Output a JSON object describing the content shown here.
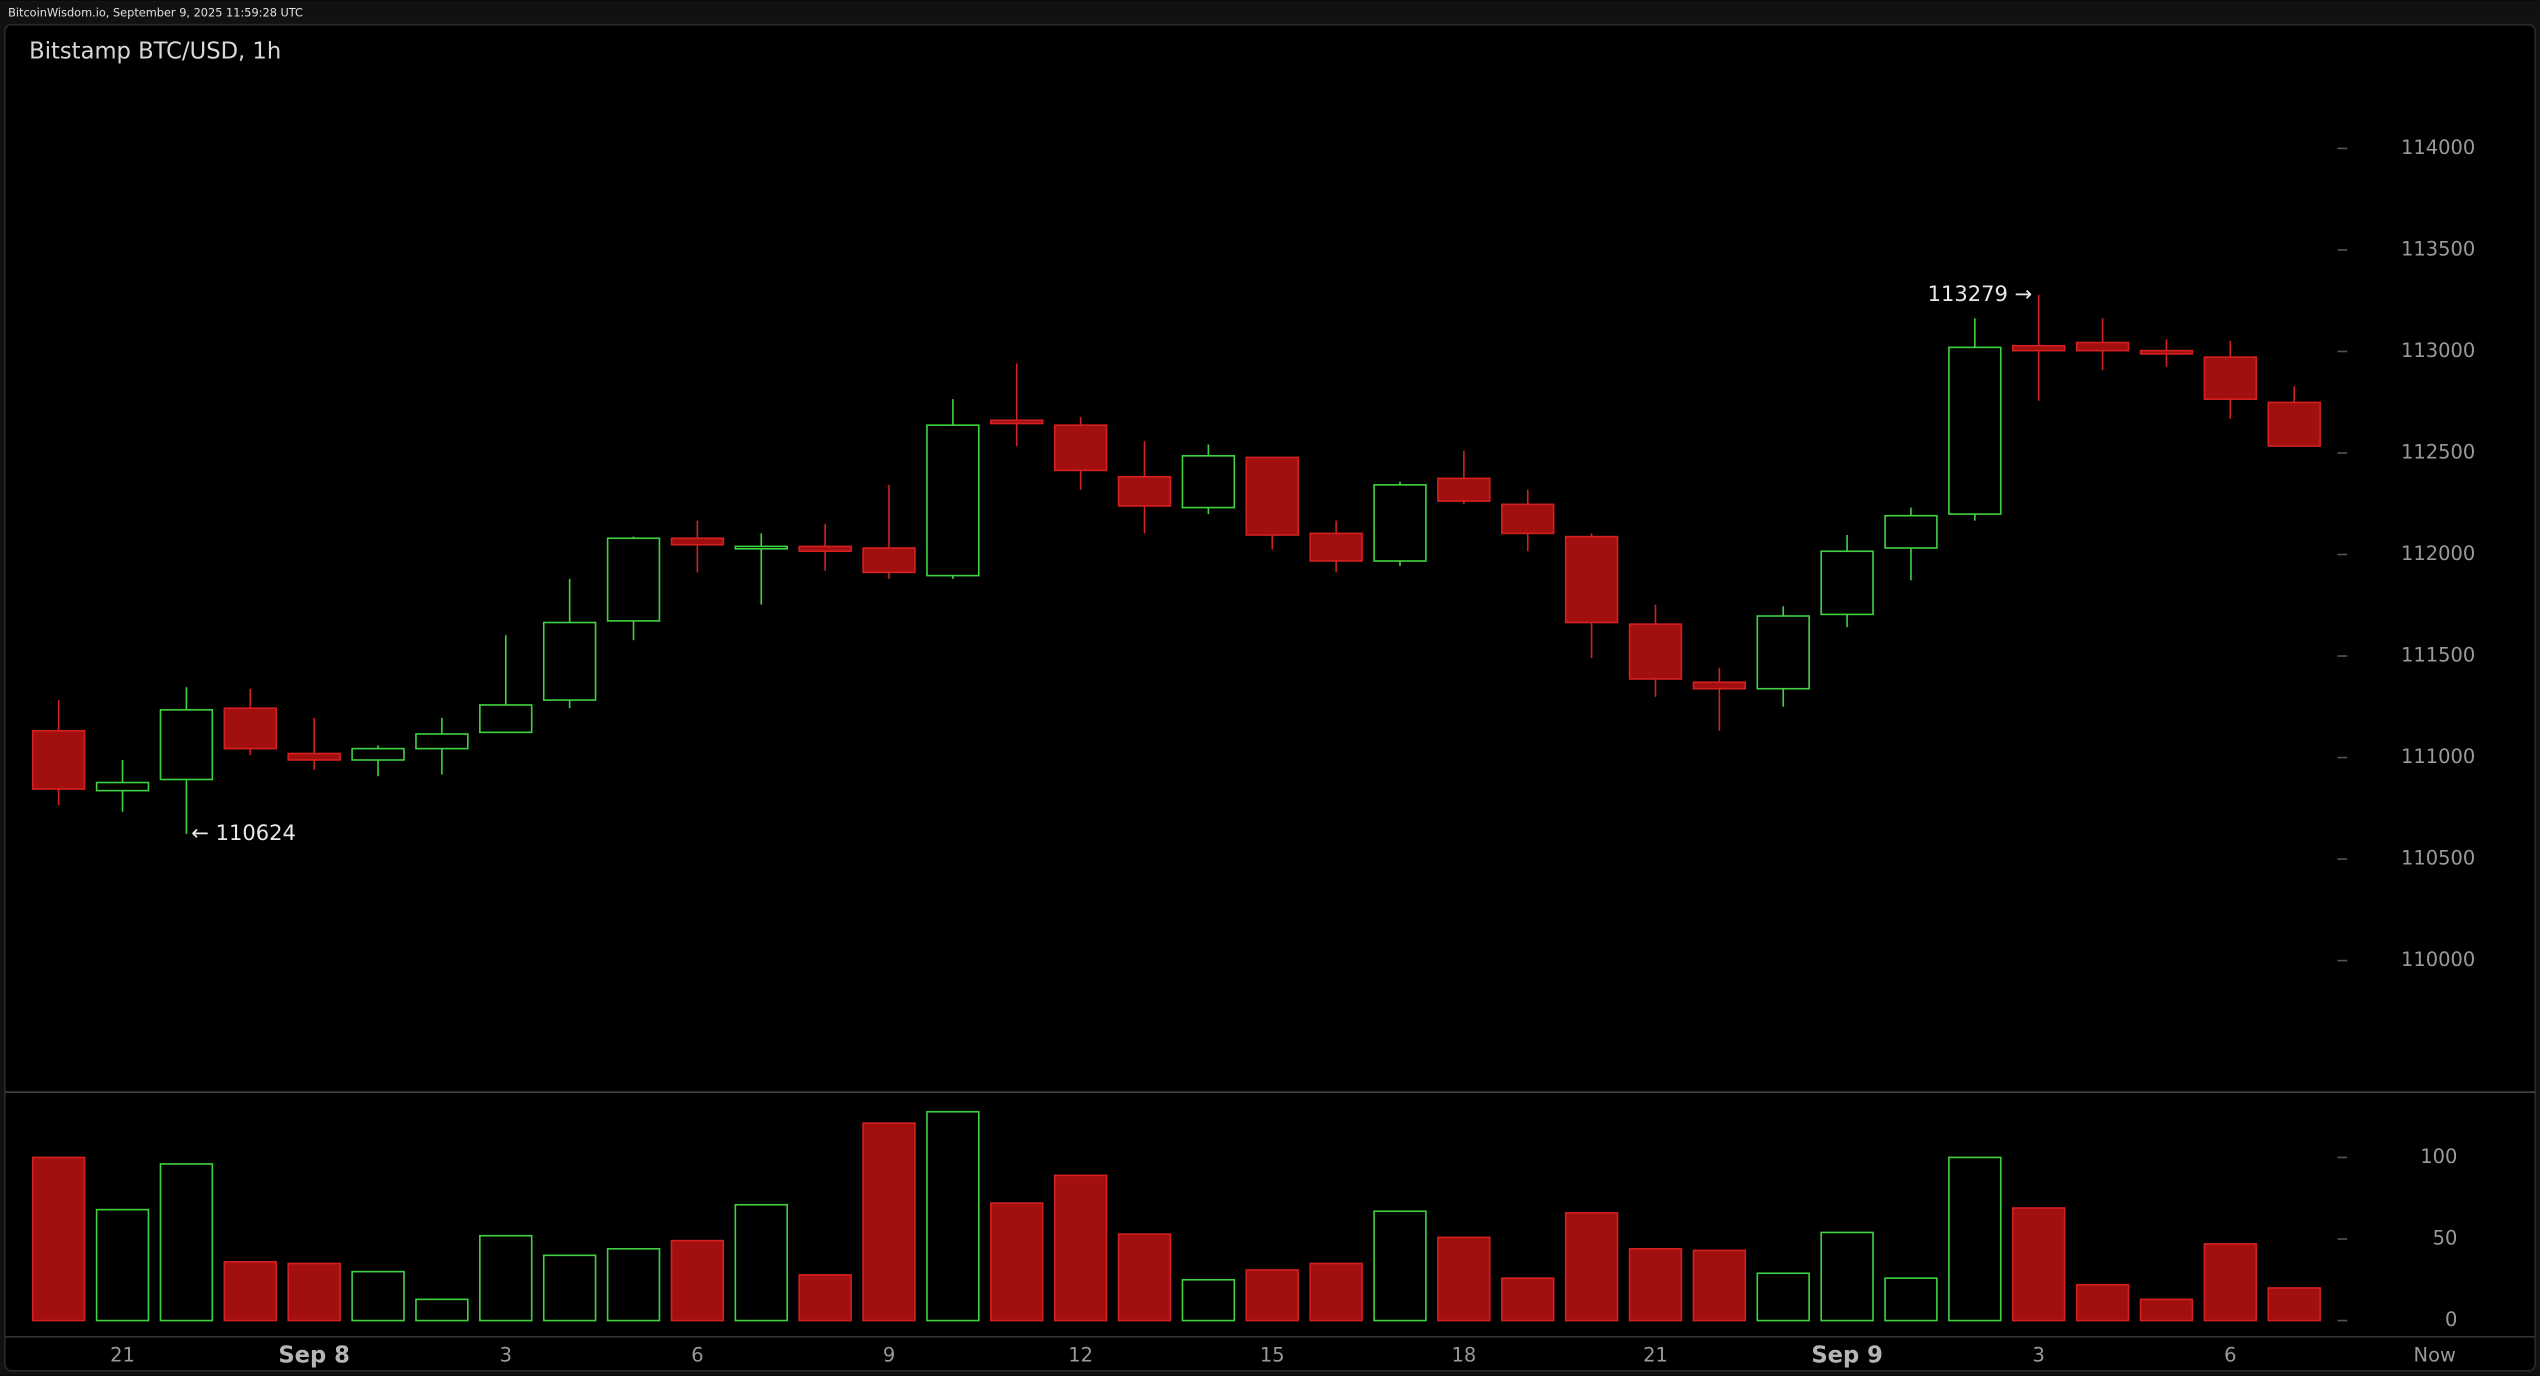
{
  "header": "BitcoinWisdom.io, September 9, 2025 11:59:28 UTC",
  "chart_data": {
    "type": "candlestick",
    "title": "Bitstamp BTC/USD, 1h",
    "categories": [
      null,
      "21",
      null,
      null,
      "Sep 8",
      null,
      null,
      "3",
      null,
      null,
      "6",
      null,
      null,
      "9",
      null,
      null,
      "12",
      null,
      null,
      "15",
      null,
      null,
      "18",
      null,
      null,
      "21",
      null,
      null,
      "Sep 9",
      null,
      null,
      "3",
      null,
      null,
      "6",
      null
    ],
    "end_label": "Now",
    "open": [
      111132,
      110837,
      110892,
      111243,
      111020,
      110988,
      111044,
      111124,
      111283,
      111673,
      112080,
      112032,
      112040,
      112032,
      111896,
      112661,
      112637,
      112383,
      112231,
      112478,
      112104,
      111968,
      112375,
      112247,
      112088,
      111657,
      111371,
      111339,
      111705,
      112032,
      112199,
      113028,
      113044,
      113004,
      112972,
      112749
    ],
    "high": [
      111283,
      110988,
      111347,
      111339,
      111195,
      111060,
      111195,
      111602,
      111880,
      112088,
      112167,
      112104,
      112151,
      112343,
      112765,
      112940,
      112677,
      112558,
      112542,
      112478,
      112167,
      112359,
      112510,
      112319,
      112104,
      111753,
      111442,
      111745,
      112096,
      112231,
      113163,
      113279,
      113163,
      113060,
      113052,
      112829
    ],
    "low": [
      110765,
      110733,
      110624,
      111012,
      110940,
      110908,
      110916,
      111124,
      111243,
      111578,
      111912,
      111753,
      111920,
      111880,
      111880,
      112534,
      112319,
      112104,
      112199,
      112024,
      111912,
      111944,
      112247,
      112016,
      111490,
      111299,
      111132,
      111251,
      111642,
      111873,
      112167,
      112757,
      112908,
      112924,
      112669,
      112534
    ],
    "close": [
      110845,
      110877,
      111235,
      111044,
      110988,
      111044,
      111116,
      111259,
      111665,
      112080,
      112048,
      112040,
      112016,
      111912,
      112637,
      112645,
      112414,
      112239,
      112486,
      112096,
      111968,
      112343,
      112263,
      112104,
      111665,
      111387,
      111339,
      111697,
      112016,
      112191,
      113020,
      113004,
      113004,
      112988,
      112765,
      112534
    ],
    "volume": [
      100,
      68,
      96,
      36,
      35,
      30,
      13,
      52,
      40,
      44,
      49,
      71,
      28,
      121,
      128,
      72,
      89,
      53,
      25,
      31,
      35,
      67,
      51,
      26,
      66,
      44,
      43,
      29,
      54,
      26,
      100,
      69,
      22,
      13,
      47,
      20
    ],
    "up_color": "#3fd13f",
    "down_color": "#d42020",
    "down_fill": "#a10f0f",
    "ylim": [
      109360,
      114410
    ],
    "yticks": [
      110000,
      110500,
      111000,
      111500,
      112000,
      112500,
      113000,
      113500,
      114000
    ],
    "volume_ylim": [
      0,
      140
    ],
    "volume_yticks": [
      0,
      50,
      100
    ],
    "annotations": [
      {
        "label": "← 110624",
        "value": 110624,
        "of": "low"
      },
      {
        "label": "113279 →",
        "value": 113279,
        "of": "high"
      }
    ]
  }
}
